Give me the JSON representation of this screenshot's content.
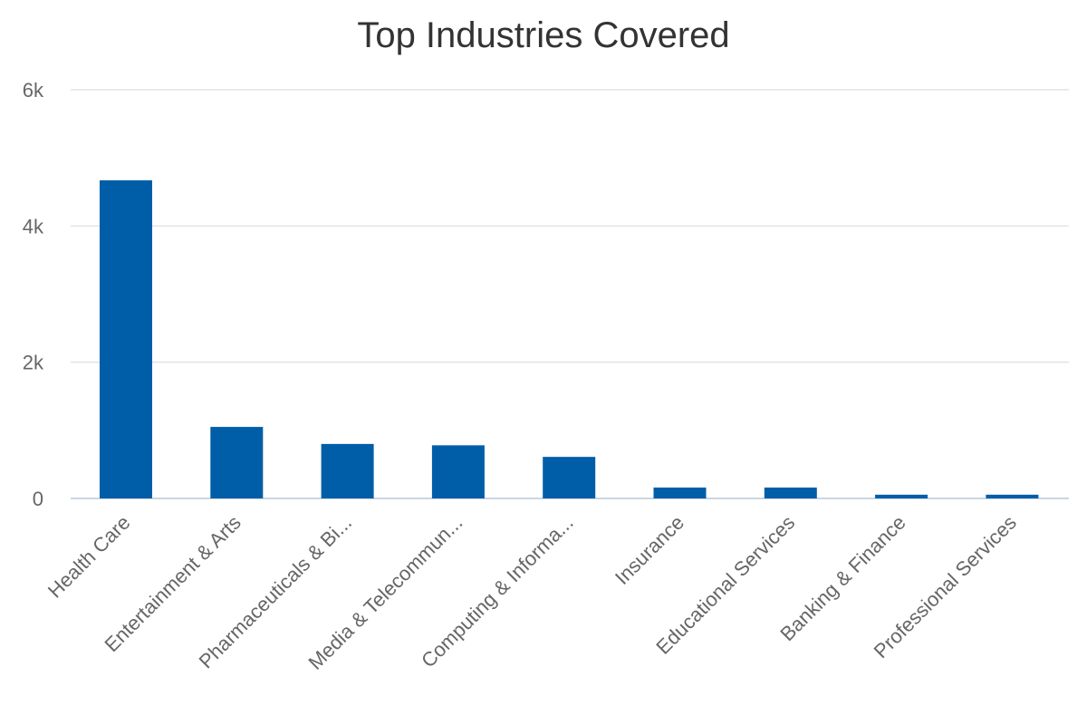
{
  "chart_data": {
    "type": "bar",
    "title": "Top Industries Covered",
    "xlabel": "",
    "ylabel": "",
    "categories": [
      "Health Care",
      "Entertainment & Arts",
      "Pharmaceuticals & Bi...",
      "Media & Telecommun...",
      "Computing & Informa...",
      "Insurance",
      "Educational Services",
      "Banking & Finance",
      "Professional Services"
    ],
    "values": [
      4670,
      1050,
      800,
      780,
      610,
      160,
      160,
      55,
      55
    ],
    "ylim": [
      0,
      6000
    ],
    "yticks": [
      0,
      2000,
      4000,
      6000
    ],
    "ytick_labels": [
      "0",
      "2k",
      "4k",
      "6k"
    ],
    "grid": true,
    "legend": "none",
    "bar_color": "#005ea8"
  }
}
